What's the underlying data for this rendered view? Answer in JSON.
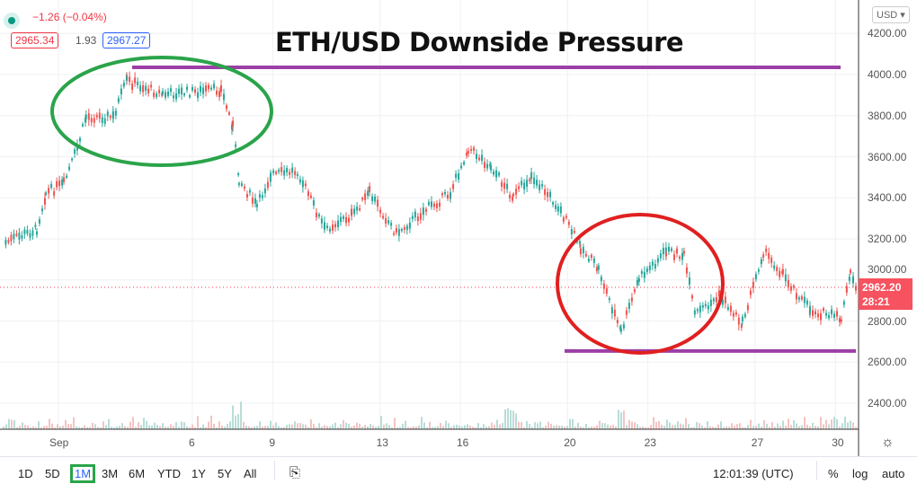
{
  "legend": {
    "change": "−1.26 (−0.04%)",
    "bid": "2965.34",
    "spread": "1.93",
    "ask": "2967.27"
  },
  "currency": "USD",
  "annotation_title": "ETH/USD Downside Pressure",
  "price_tag": {
    "price": "2962.20",
    "countdown": "28:21"
  },
  "toolbar": {
    "ranges": [
      "1D",
      "5D",
      "1M",
      "3M",
      "6M",
      "YTD",
      "1Y",
      "5Y",
      "All"
    ],
    "selected": "1M",
    "time": "12:01:39 (UTC)",
    "pct": "%",
    "log": "log",
    "auto": "auto"
  },
  "colors": {
    "up": "#26a69a",
    "down": "#ef5350",
    "resistance": "#9c3fa6",
    "green_circle": "#2aa44a",
    "red_circle": "#e02020",
    "price_tag": "#f7525f"
  },
  "chart_data": {
    "type": "line",
    "title": "ETH/USD Downside Pressure",
    "xlabel": "",
    "ylabel": "USD",
    "x_unit": "days since Sep 1",
    "xlim": [
      -2.0,
      30.1
    ],
    "ylim": [
      2270,
      4360
    ],
    "y_ticks": [
      "4200.00",
      "4000.00",
      "3800.00",
      "3600.00",
      "3400.00",
      "3200.00",
      "3000.00",
      "2800.00",
      "2600.00",
      "2400.00"
    ],
    "y_tick_values": [
      4200,
      4000,
      3800,
      3600,
      3400,
      3200,
      3000,
      2800,
      2600,
      2400
    ],
    "x_ticks": [
      "Sep",
      "6",
      "9",
      "13",
      "16",
      "20",
      "23",
      "27",
      "30"
    ],
    "x_tick_values": [
      0,
      5,
      8,
      12,
      15,
      19,
      22,
      26,
      29
    ],
    "x": [
      -2.0,
      -0.84,
      -0.5,
      0.17,
      0.67,
      1.0,
      2.01,
      2.52,
      3.86,
      6.04,
      6.48,
      6.71,
      7.38,
      7.89,
      8.89,
      9.9,
      10.91,
      11.58,
      12.58,
      13.59,
      14.6,
      15.27,
      16.11,
      16.95,
      17.62,
      18.62,
      19.46,
      20.13,
      20.97,
      21.64,
      22.65,
      23.32,
      23.72,
      24.66,
      25.5,
      26.28,
      27.01,
      28.02,
      29.19,
      29.53,
      29.77
    ],
    "y": [
      3183,
      3248,
      3423,
      3467,
      3642,
      3795,
      3795,
      3970,
      3904,
      3926,
      3750,
      3489,
      3357,
      3510,
      3532,
      3248,
      3314,
      3423,
      3226,
      3336,
      3423,
      3642,
      3554,
      3401,
      3510,
      3357,
      3161,
      3051,
      2745,
      3007,
      3139,
      3117,
      2832,
      2920,
      2789,
      3139,
      3029,
      2854,
      2811,
      3029,
      2962
    ],
    "current_price": 2962.2,
    "lines": [
      {
        "label": "resistance",
        "price": 4035
      },
      {
        "label": "support",
        "price": 2654
      }
    ]
  }
}
